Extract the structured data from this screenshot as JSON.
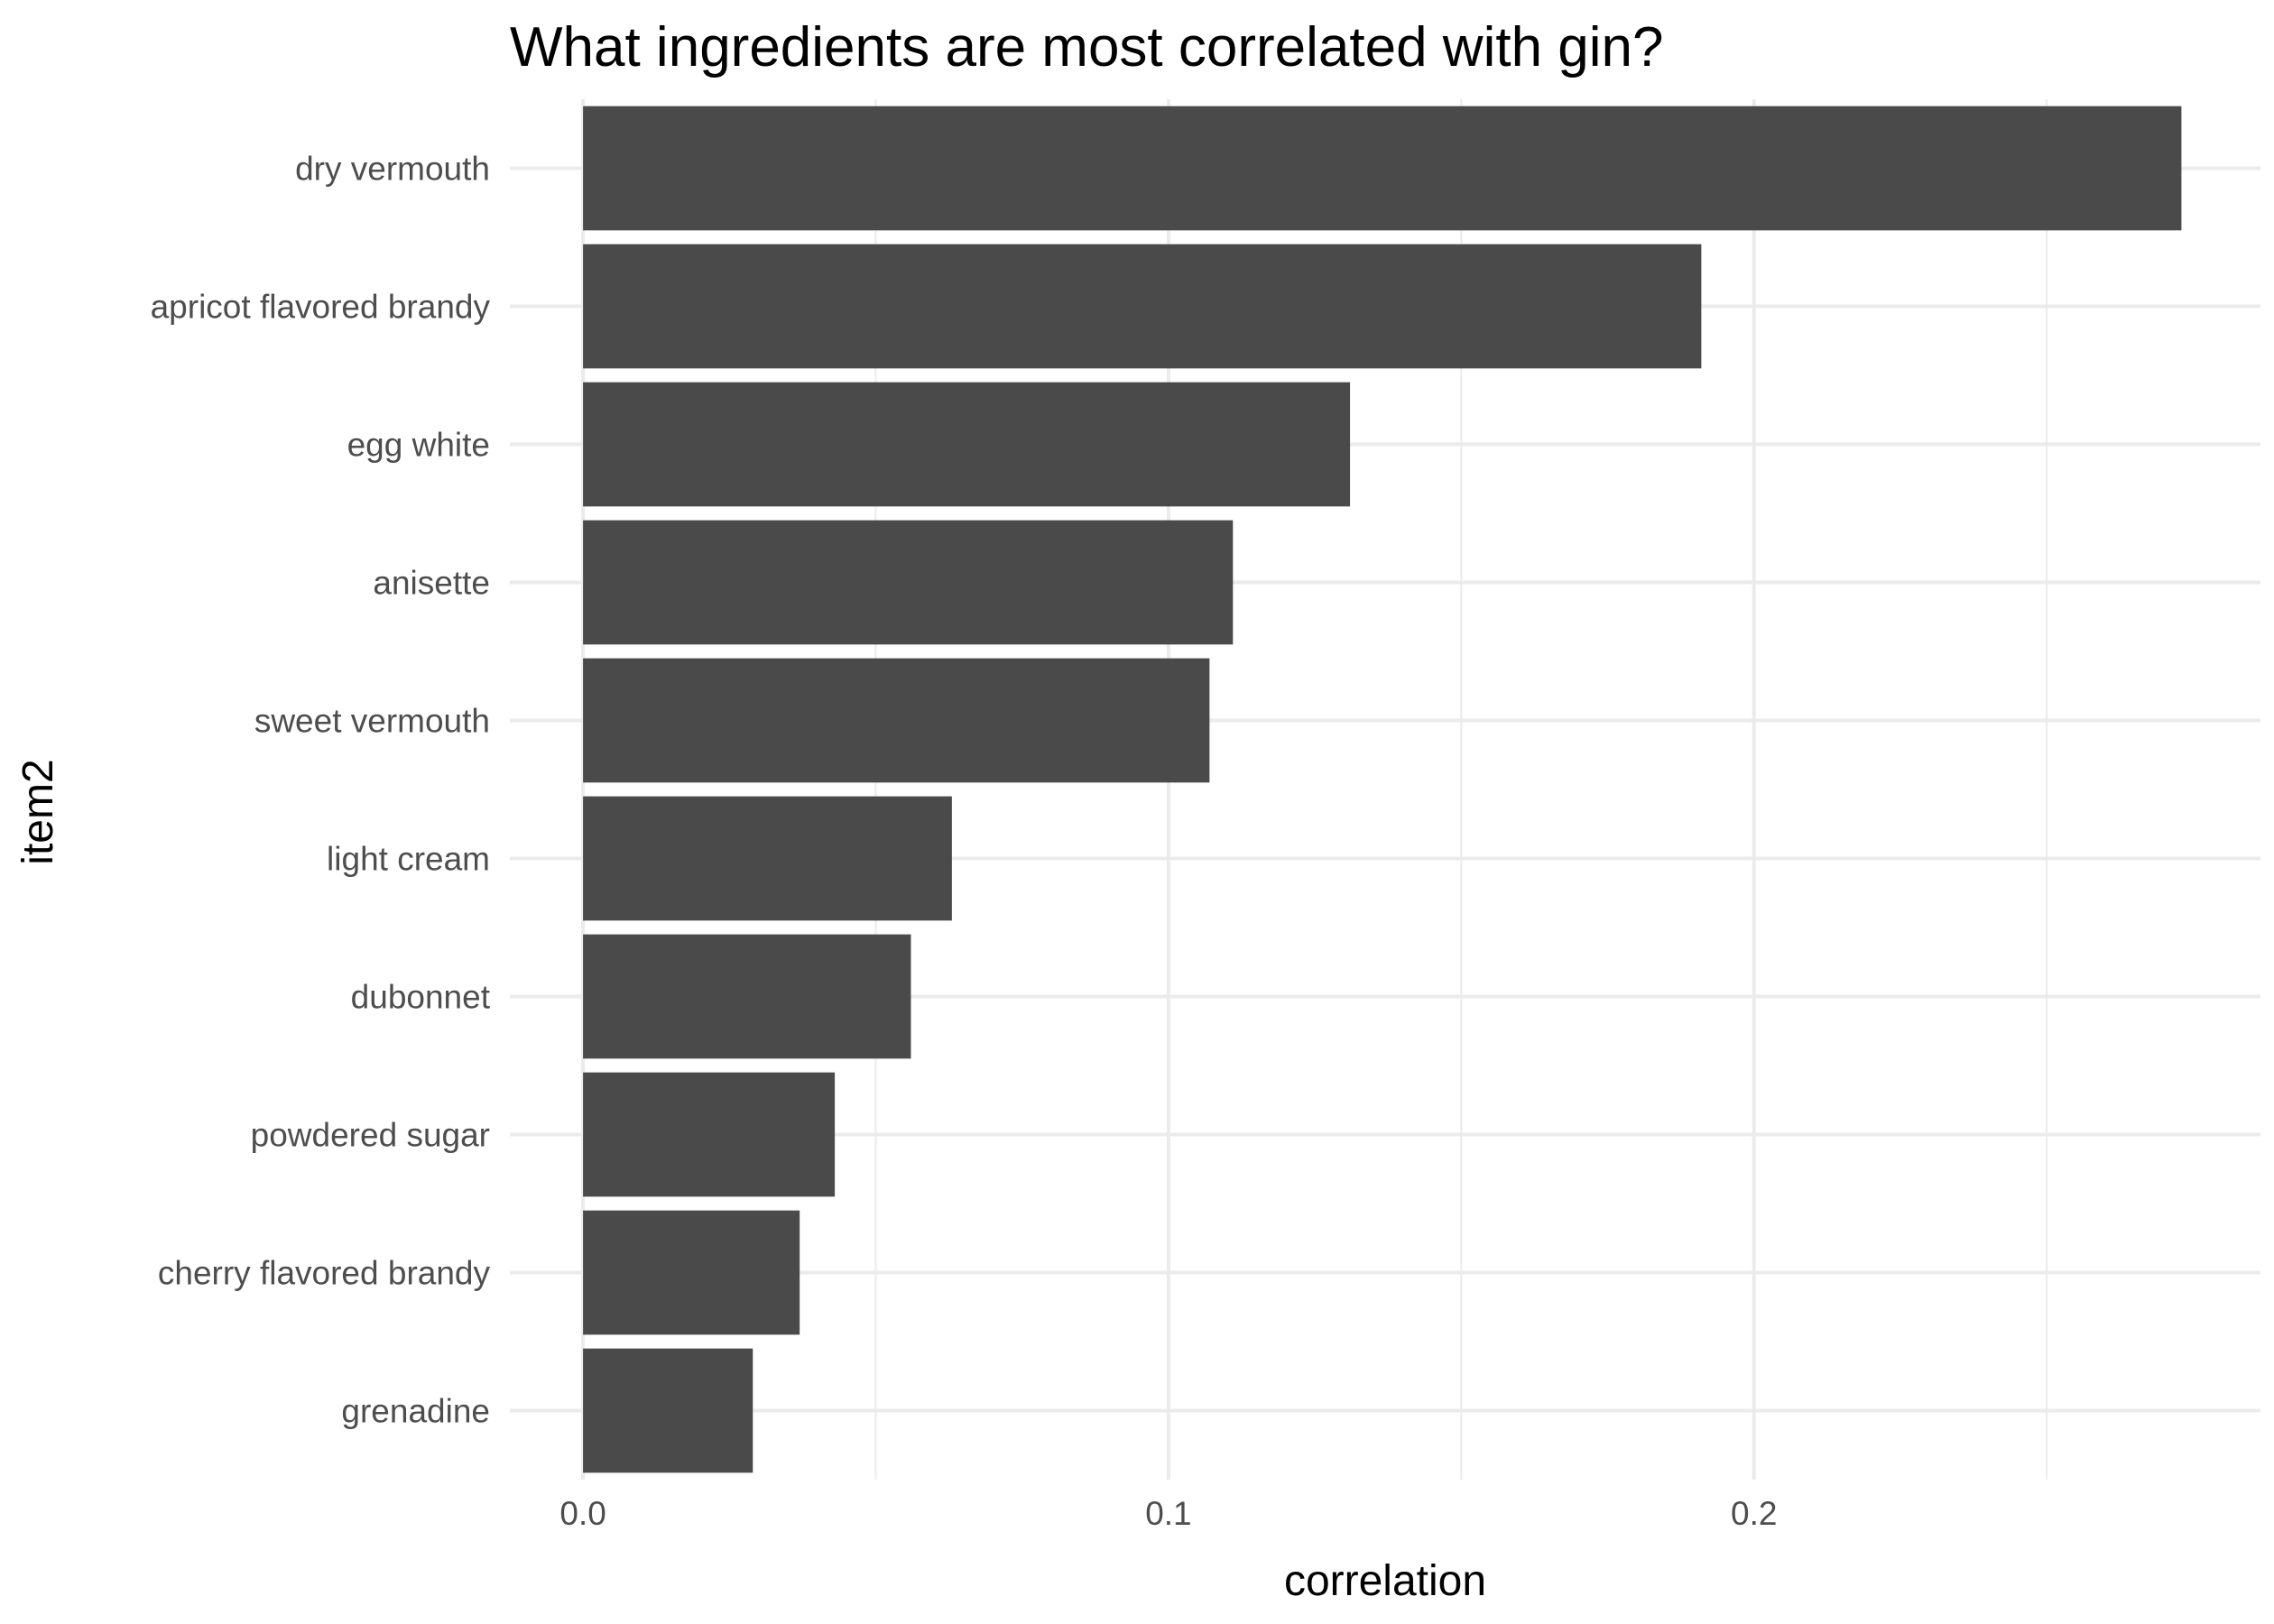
{
  "chart_data": {
    "type": "bar",
    "orientation": "horizontal",
    "title": "What ingredients are most correlated with gin?",
    "xlabel": "correlation",
    "ylabel": "item2",
    "categories": [
      "dry vermouth",
      "apricot flavored brandy",
      "egg white",
      "anisette",
      "sweet vermouth",
      "light cream",
      "dubonnet",
      "powdered sugar",
      "cherry flavored brandy",
      "grenadine"
    ],
    "values": [
      0.273,
      0.191,
      0.131,
      0.111,
      0.107,
      0.063,
      0.056,
      0.043,
      0.037,
      0.029
    ],
    "xlim": [
      -0.0125,
      0.2865
    ],
    "x_ticks": [
      0.0,
      0.1,
      0.2
    ],
    "x_tick_labels": [
      "0.0",
      "0.1",
      "0.2"
    ],
    "x_minor_ticks": [
      0.05,
      0.15,
      0.25
    ],
    "grid": true,
    "legend": "none",
    "bar_color": "#4a4a4a",
    "grid_color": "#ebebeb"
  }
}
